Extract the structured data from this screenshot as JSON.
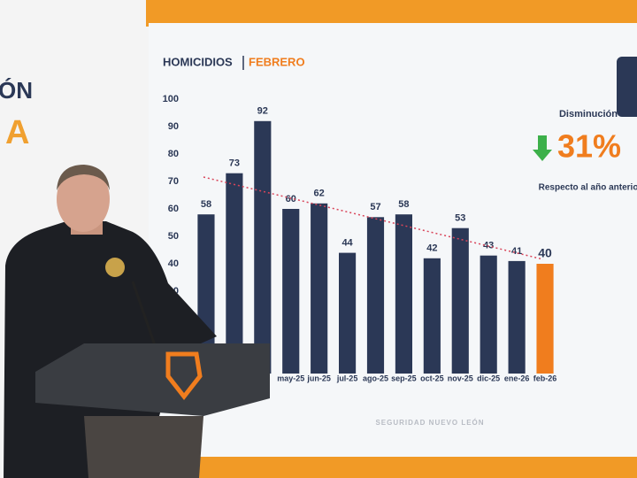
{
  "chart_data": {
    "type": "bar",
    "title": "HOMICIDIOS",
    "title_highlight": "FEBRERO",
    "categories": [
      null,
      null,
      null,
      "may-25",
      "jun-25",
      "jul-25",
      "ago-25",
      "sep-25",
      "oct-25",
      "nov-25",
      "dic-25",
      "ene-26",
      "feb-26"
    ],
    "values": [
      58,
      73,
      92,
      60,
      62,
      44,
      57,
      58,
      42,
      53,
      43,
      41,
      40
    ],
    "colors": [
      "#2b3856",
      "#2b3856",
      "#2b3856",
      "#2b3856",
      "#2b3856",
      "#2b3856",
      "#2b3856",
      "#2b3856",
      "#2b3856",
      "#2b3856",
      "#2b3856",
      "#2b3856",
      "#f07d1e"
    ],
    "ylim": [
      0,
      100
    ],
    "yticks": [
      30,
      40,
      50,
      60,
      70,
      80,
      90,
      100
    ],
    "grid": false,
    "annotations": {
      "change_label": "Disminución",
      "change_value": "31%",
      "change_note": "Respecto al año anterior"
    },
    "footer": "SEGURIDAD NUEVO LEÓN"
  },
  "backdrop": [
    "ÓN",
    "A"
  ]
}
